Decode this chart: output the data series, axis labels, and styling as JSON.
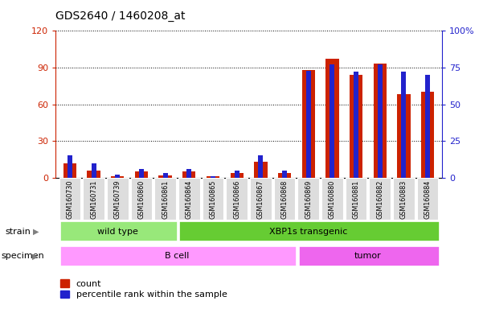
{
  "title": "GDS2640 / 1460208_at",
  "samples": [
    "GSM160730",
    "GSM160731",
    "GSM160739",
    "GSM160860",
    "GSM160861",
    "GSM160864",
    "GSM160865",
    "GSM160866",
    "GSM160867",
    "GSM160868",
    "GSM160869",
    "GSM160880",
    "GSM160881",
    "GSM160882",
    "GSM160883",
    "GSM160884"
  ],
  "count": [
    12,
    6,
    1,
    5,
    2,
    5,
    1,
    4,
    13,
    4,
    88,
    97,
    84,
    93,
    68,
    70
  ],
  "percentile": [
    15,
    10,
    2,
    6,
    3,
    6,
    1,
    5,
    15,
    5,
    73,
    77,
    72,
    77,
    72,
    70
  ],
  "ylim_left": [
    0,
    120
  ],
  "ylim_right": [
    0,
    100
  ],
  "yticks_left": [
    0,
    30,
    60,
    90,
    120
  ],
  "yticks_right": [
    0,
    25,
    50,
    75,
    100
  ],
  "yticklabels_right": [
    "0",
    "25",
    "50",
    "75",
    "100%"
  ],
  "strain_groups": [
    {
      "label": "wild type",
      "start": 0,
      "end": 4,
      "color": "#98E87A"
    },
    {
      "label": "XBP1s transgenic",
      "start": 5,
      "end": 15,
      "color": "#66CC33"
    }
  ],
  "specimen_groups": [
    {
      "label": "B cell",
      "start": 0,
      "end": 9,
      "color": "#FF99FF"
    },
    {
      "label": "tumor",
      "start": 10,
      "end": 15,
      "color": "#EE66EE"
    }
  ],
  "strain_label": "strain",
  "specimen_label": "specimen",
  "legend_count_label": "count",
  "legend_pct_label": "percentile rank within the sample",
  "bar_color_count": "#CC2200",
  "bar_color_pct": "#2222CC",
  "bg_plot": "#FFFFFF",
  "xticklabel_bg": "#DDDDDD",
  "red_ytick_color": "#CC2200",
  "blue_ytick_color": "#2222CC"
}
